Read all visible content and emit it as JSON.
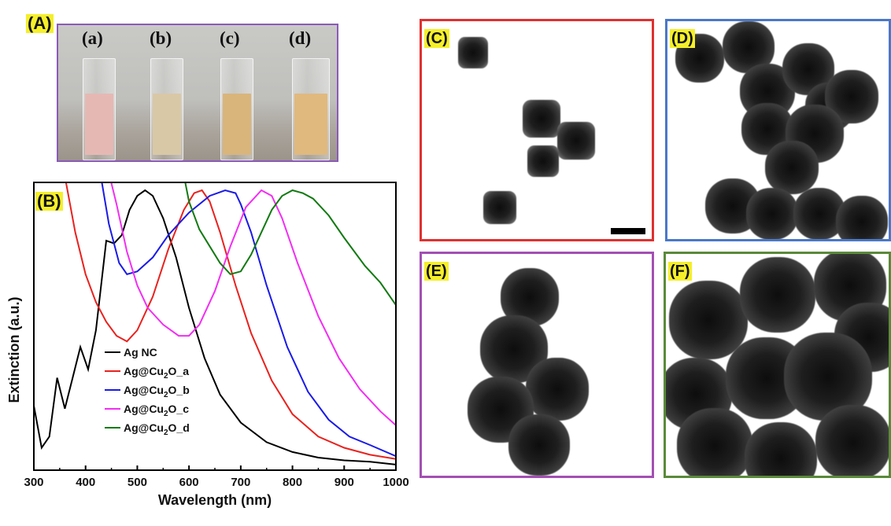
{
  "panels": {
    "A": {
      "tag": "(A)"
    },
    "B": {
      "tag": "(B)"
    },
    "C": {
      "tag": "(C)",
      "border": "#e03030"
    },
    "D": {
      "tag": "(D)",
      "border": "#4a78c8"
    },
    "E": {
      "tag": "(E)",
      "border": "#a34fb3"
    },
    "F": {
      "tag": "(F)",
      "border": "#5a8a3a"
    }
  },
  "vials": [
    {
      "label": "(a)",
      "color": "#e6b8b4"
    },
    {
      "label": "(b)",
      "color": "#d9c8a6"
    },
    {
      "label": "(c)",
      "color": "#d9b57c"
    },
    {
      "label": "(d)",
      "color": "#e0b97e"
    }
  ],
  "chart_data": {
    "type": "line",
    "xlabel": "Wavelength (nm)",
    "ylabel": "Extinction (a.u.)",
    "xlim": [
      300,
      1000
    ],
    "ylim": [
      0,
      1
    ],
    "xticks": [
      300,
      400,
      500,
      600,
      700,
      800,
      900,
      1000
    ],
    "legend_position": "bottom-left",
    "series": [
      {
        "name": "Ag NC",
        "color": "#000000",
        "x": [
          300,
          315,
          330,
          345,
          360,
          375,
          390,
          405,
          420,
          440,
          455,
          470,
          485,
          500,
          515,
          530,
          550,
          575,
          600,
          630,
          660,
          700,
          750,
          800,
          850,
          900,
          950,
          1000
        ],
        "y": [
          0.23,
          0.08,
          0.12,
          0.33,
          0.22,
          0.33,
          0.44,
          0.36,
          0.5,
          0.82,
          0.81,
          0.84,
          0.93,
          0.98,
          1.0,
          0.98,
          0.9,
          0.76,
          0.58,
          0.4,
          0.27,
          0.17,
          0.1,
          0.065,
          0.045,
          0.035,
          0.03,
          0.02
        ]
      },
      {
        "name": "Ag@Cu2O_a",
        "color": "#e8221e",
        "x": [
          355,
          380,
          400,
          420,
          440,
          460,
          480,
          500,
          530,
          560,
          590,
          610,
          625,
          640,
          660,
          690,
          720,
          760,
          800,
          850,
          900,
          950,
          1000
        ],
        "y": [
          1.1,
          0.85,
          0.7,
          0.6,
          0.53,
          0.48,
          0.46,
          0.5,
          0.62,
          0.79,
          0.93,
          0.99,
          1.0,
          0.96,
          0.85,
          0.66,
          0.49,
          0.32,
          0.2,
          0.12,
          0.08,
          0.055,
          0.04
        ]
      },
      {
        "name": "Ag@Cu2O_b",
        "color": "#1a1ae6",
        "x": [
          425,
          445,
          465,
          480,
          500,
          530,
          560,
          600,
          640,
          670,
          690,
          700,
          720,
          750,
          790,
          830,
          870,
          910,
          950,
          1000
        ],
        "y": [
          1.1,
          0.88,
          0.74,
          0.7,
          0.71,
          0.76,
          0.84,
          0.92,
          0.98,
          1.0,
          0.99,
          0.95,
          0.85,
          0.66,
          0.44,
          0.28,
          0.18,
          0.12,
          0.09,
          0.05
        ]
      },
      {
        "name": "Ag@Cu2O_c",
        "color": "#f22ef2",
        "x": [
          440,
          460,
          480,
          500,
          520,
          550,
          580,
          600,
          620,
          650,
          680,
          710,
          740,
          760,
          780,
          810,
          850,
          890,
          930,
          970,
          1000
        ],
        "y": [
          1.1,
          0.95,
          0.78,
          0.66,
          0.58,
          0.52,
          0.48,
          0.48,
          0.52,
          0.64,
          0.8,
          0.94,
          1.0,
          0.98,
          0.9,
          0.74,
          0.55,
          0.4,
          0.29,
          0.21,
          0.16
        ]
      },
      {
        "name": "Ag@Cu2O_d",
        "color": "#117a11",
        "x": [
          585,
          600,
          620,
          640,
          660,
          680,
          700,
          720,
          740,
          760,
          780,
          800,
          820,
          840,
          870,
          900,
          940,
          970,
          1000
        ],
        "y": [
          1.1,
          0.96,
          0.86,
          0.8,
          0.74,
          0.7,
          0.71,
          0.77,
          0.85,
          0.93,
          0.98,
          1.0,
          0.99,
          0.97,
          0.91,
          0.83,
          0.73,
          0.67,
          0.59
        ]
      }
    ]
  }
}
